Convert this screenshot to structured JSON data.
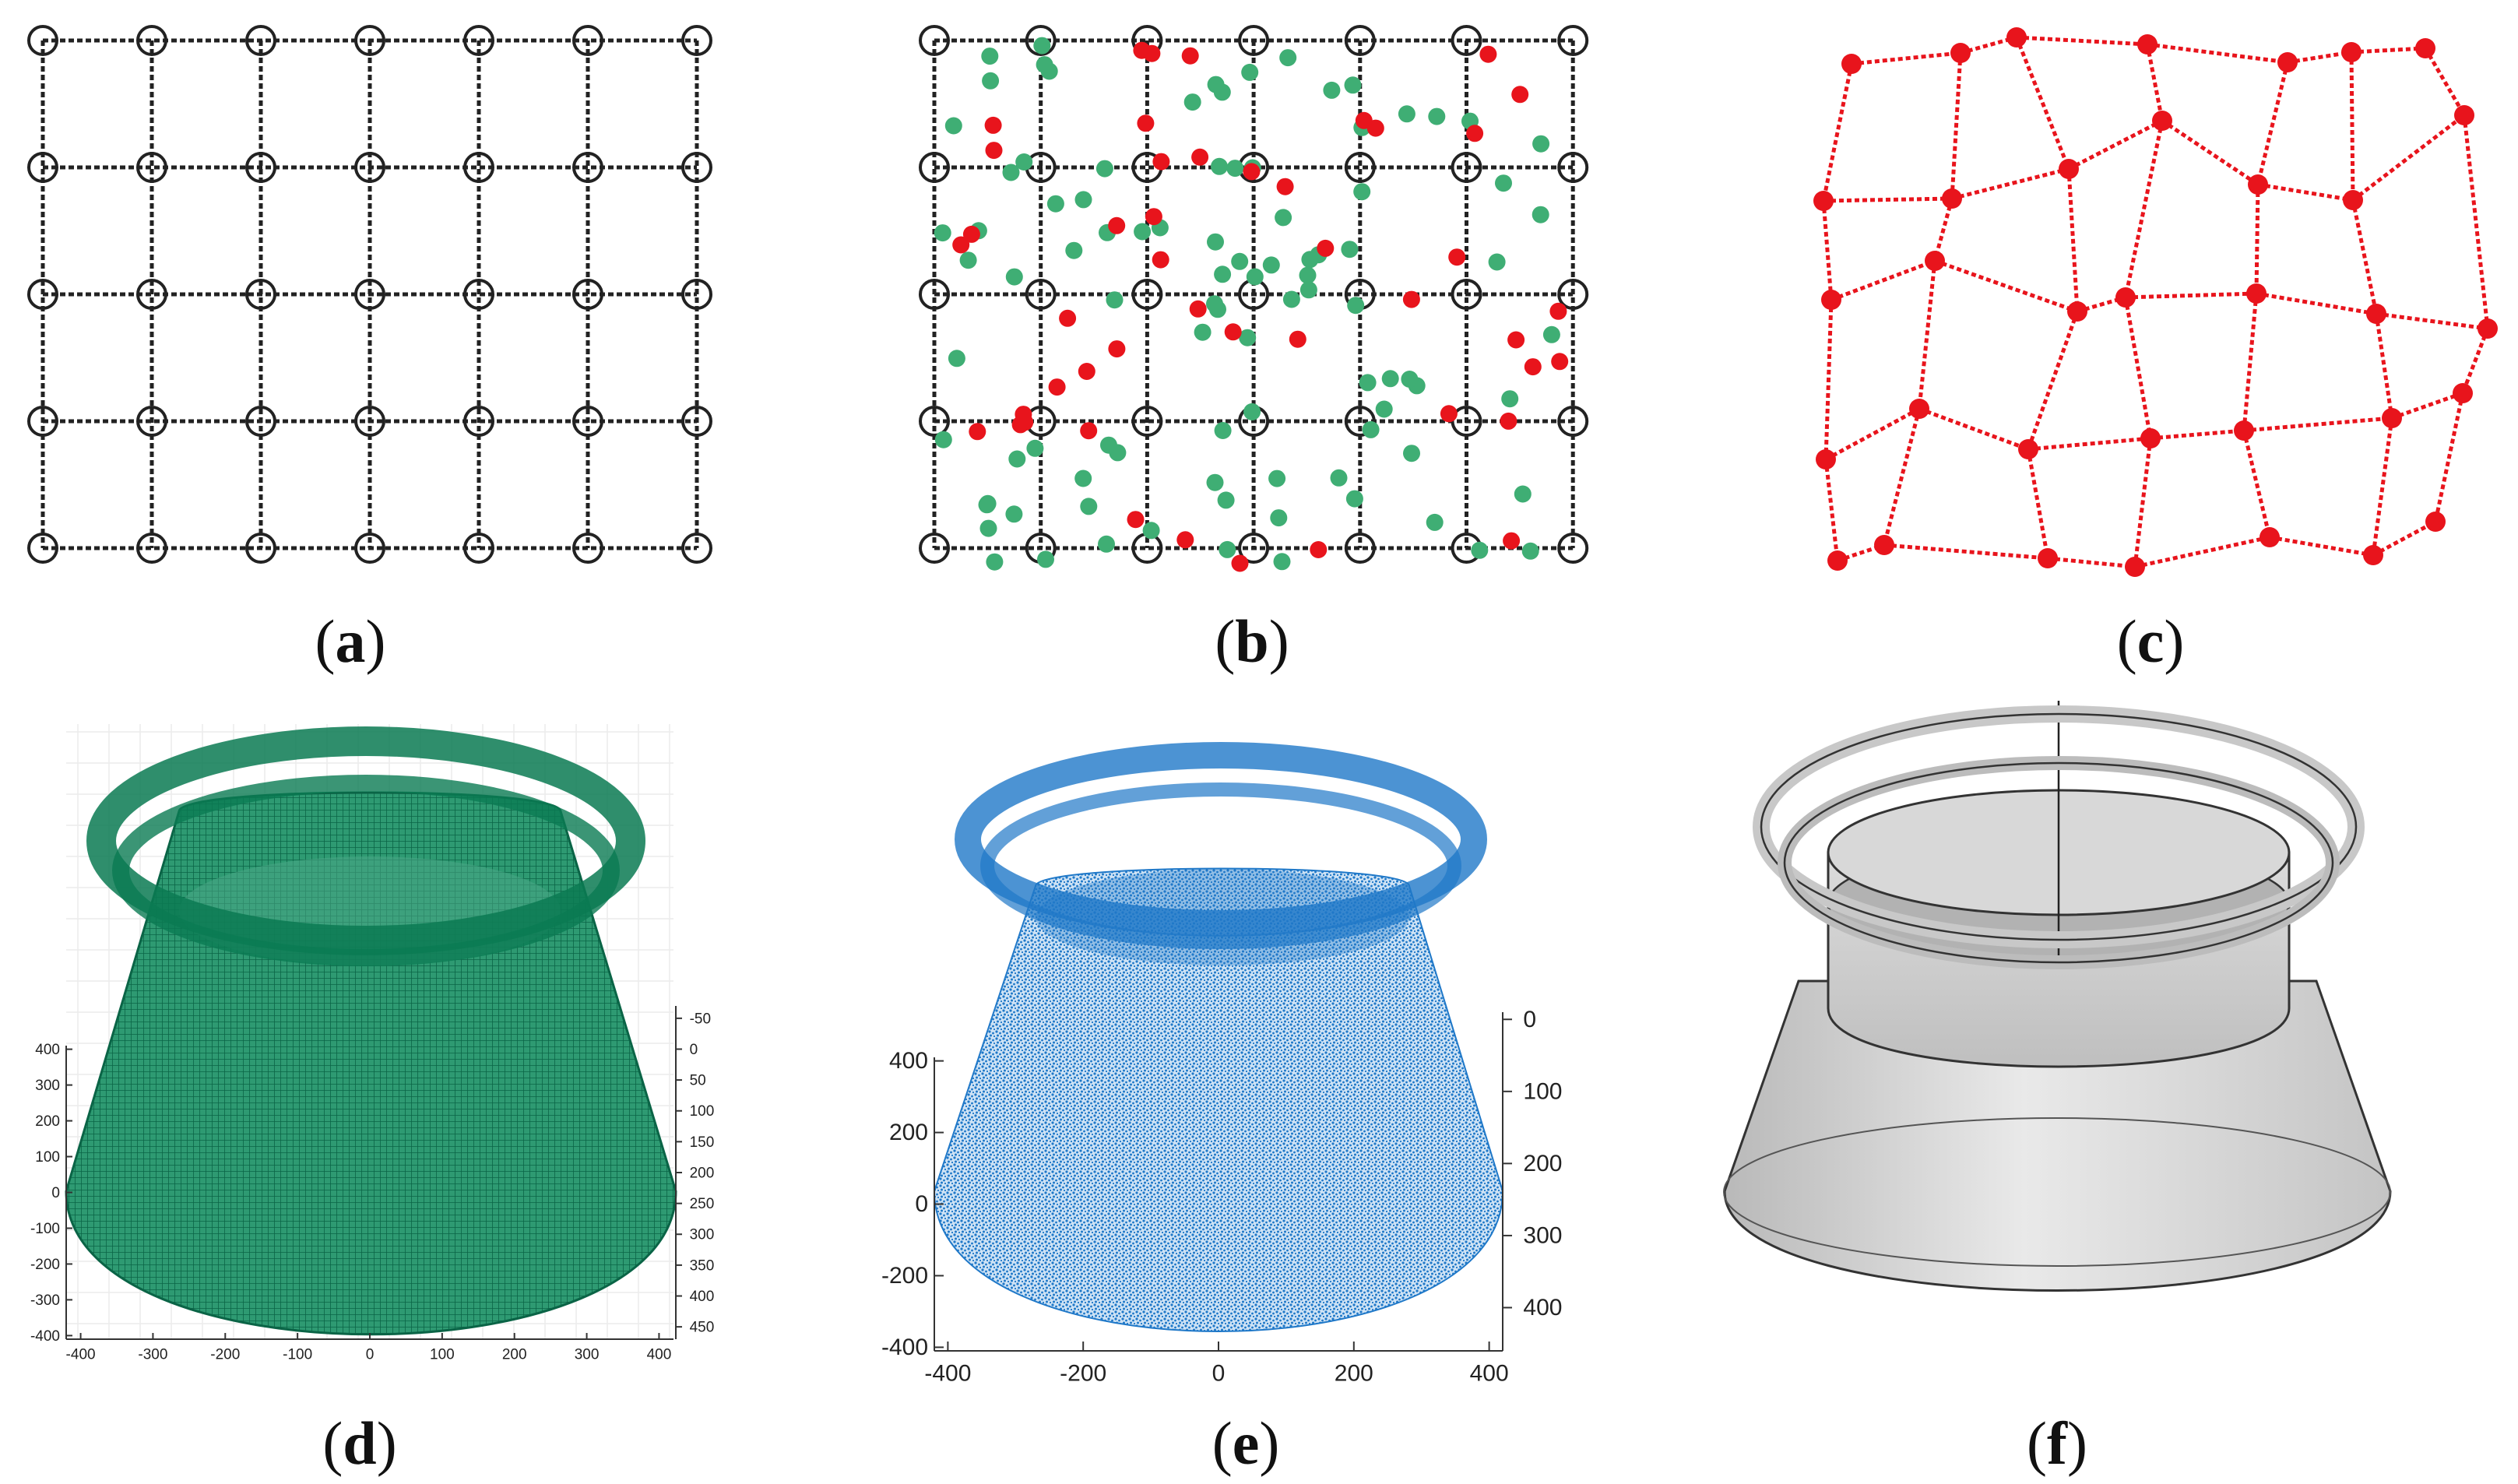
{
  "panels": {
    "a": {
      "label": "a"
    },
    "b": {
      "label": "b"
    },
    "c": {
      "label": "c"
    },
    "d": {
      "label": "d"
    },
    "e": {
      "label": "e"
    },
    "f": {
      "label": "f"
    }
  },
  "colors": {
    "grid": "#222222",
    "red_point": "#e8141c",
    "green_point": "#3fae74",
    "mesh_green": "#0a7a52",
    "cloud_blue": "#1f78c8",
    "cad_gray": "#cfcfcf"
  },
  "chart_data": [
    {
      "panel": "d",
      "type": "scatter",
      "xticks": [
        "-400",
        "-300",
        "-200",
        "-100",
        "0",
        "100",
        "200",
        "300",
        "400"
      ],
      "yticks_left": [
        "400",
        "300",
        "200",
        "100",
        "0",
        "-100",
        "-200",
        "-300",
        "-400"
      ],
      "zticks_right": [
        "-50",
        "0",
        "50",
        "100",
        "150",
        "200",
        "250",
        "300",
        "350",
        "400",
        "450"
      ],
      "xlim": [
        -420,
        420
      ],
      "ylim": [
        -410,
        410
      ],
      "zlim": [
        -70,
        470
      ]
    },
    {
      "panel": "e",
      "type": "scatter",
      "xticks": [
        "-400",
        "-200",
        "0",
        "200",
        "400"
      ],
      "yticks_left": [
        "400",
        "200",
        "0",
        "-200",
        "-400"
      ],
      "zticks_right": [
        "0",
        "100",
        "200",
        "300",
        "400"
      ],
      "xlim": [
        -420,
        420
      ],
      "ylim": [
        -410,
        410
      ],
      "zlim": [
        -10,
        460
      ]
    }
  ]
}
